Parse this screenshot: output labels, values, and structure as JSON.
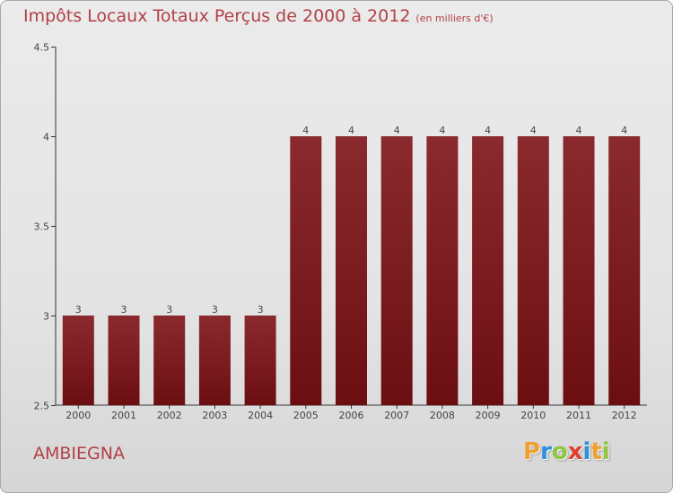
{
  "title": "Impôts Locaux Totaux Perçus de 2000 à 2012",
  "subtitle": "(en milliers d'€)",
  "commune": "AMBIEGNA",
  "logo": {
    "letters": [
      "P",
      "r",
      "o",
      "x",
      "i",
      "t",
      "i"
    ],
    "colors": [
      "#f0a030",
      "#2f8fd8",
      "#8ec63f",
      "#e0402f",
      "#2f8fd8",
      "#f0a030",
      "#8ec63f"
    ]
  },
  "colors": {
    "bar": "#6b0e12",
    "bar_top": "#8a2a2e",
    "text_accent": "#b24046"
  },
  "chart_data": {
    "type": "bar",
    "title": "Impôts Locaux Totaux Perçus de 2000 à 2012",
    "ylabel": "en milliers d'€",
    "categories": [
      "2000",
      "2001",
      "2002",
      "2003",
      "2004",
      "2005",
      "2006",
      "2007",
      "2008",
      "2009",
      "2010",
      "2011",
      "2012"
    ],
    "values": [
      3,
      3,
      3,
      3,
      3,
      4,
      4,
      4,
      4,
      4,
      4,
      4,
      4
    ],
    "labels": [
      "3",
      "3",
      "3",
      "3",
      "3",
      "4",
      "4",
      "4",
      "4",
      "4",
      "4",
      "4",
      "4"
    ],
    "ylim": [
      2.5,
      4.5
    ],
    "yticks": [
      2.5,
      3,
      3.5,
      4,
      4.5
    ],
    "ytick_labels": [
      "2.5",
      "3",
      "3.5",
      "4",
      "4.5"
    ],
    "grid": false
  }
}
